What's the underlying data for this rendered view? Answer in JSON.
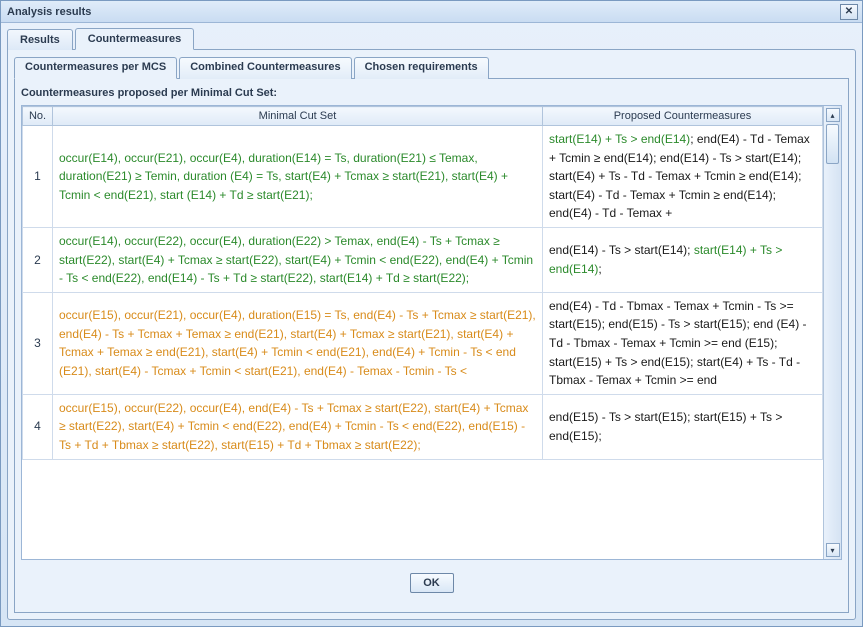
{
  "window": {
    "title": "Analysis results"
  },
  "tabs": {
    "items": [
      {
        "label": "Results",
        "active": false
      },
      {
        "label": "Countermeasures",
        "active": true
      }
    ]
  },
  "subtabs": {
    "items": [
      {
        "label": "Countermeasures per MCS",
        "active": true
      },
      {
        "label": "Combined Countermeasures",
        "active": false
      },
      {
        "label": "Chosen requirements",
        "active": false
      }
    ]
  },
  "caption": "Countermeasures proposed per Minimal Cut Set:",
  "columns": {
    "no": "No.",
    "mcs": "Minimal Cut Set",
    "cm": "Proposed Countermeasures"
  },
  "colors": {
    "green": "#2b8a2b",
    "orange": "#d88b1a",
    "black": "#1a1a1a"
  },
  "rows": [
    {
      "no": "1",
      "mcs_color": "green",
      "mcs": "occur(E14), occur(E21), occur(E4),\nduration(E14) = Ts, duration(E21) ≤ Temax, duration(E21) ≥ Temin, duration (E4) = Ts, start(E4) + Tcmax ≥ start(E21), start(E4) + Tcmin < end(E21), start (E14) + Td ≥ start(E21);",
      "cm_segments": [
        {
          "color": "green",
          "text": "start(E14) + Ts > end(E14)"
        },
        {
          "color": "black",
          "text": "; end(E4) - Td - Temax + Tcmin ≥ end(E14); end(E14) - Ts > start(E14); start(E4) + Ts - Td - Temax + Tcmin ≥ end(E14); start(E4) - Td - Temax + Tcmin ≥ end(E14); end(E4) - Td - Temax +"
        }
      ]
    },
    {
      "no": "2",
      "mcs_color": "green",
      "mcs": "occur(E14), occur(E22), occur(E4),\nduration(E22) > Temax, end(E4) - Ts + Tcmax ≥ start(E22), start(E4) + Tcmax ≥ start(E22), start(E4) + Tcmin < end(E22), end(E4) + Tcmin - Ts < end(E22), end(E14) - Ts + Td ≥ start(E22), start(E14) + Td ≥ start(E22);",
      "cm_segments": [
        {
          "color": "black",
          "text": "end(E14) - Ts > start(E14); "
        },
        {
          "color": "green",
          "text": "start(E14) + Ts > end(E14)"
        },
        {
          "color": "black",
          "text": ";"
        }
      ]
    },
    {
      "no": "3",
      "mcs_color": "orange",
      "mcs": "occur(E15), occur(E21), occur(E4),\nduration(E15) = Ts, end(E4) - Ts + Tcmax ≥ start(E21), end(E4) - Ts + Tcmax + Temax ≥ end(E21), start(E4) + Tcmax ≥ start(E21), start(E4) + Tcmax + Temax ≥ end(E21), start(E4) + Tcmin < end(E21), end(E4) + Tcmin - Ts < end (E21), start(E4) - Tcmax + Tcmin < start(E21), end(E4) - Temax - Tcmin - Ts <",
      "cm_segments": [
        {
          "color": "black",
          "text": "end(E4) - Td - Tbmax - Temax + Tcmin - Ts >= start(E15); end(E15) - Ts > start(E15); end (E4) - Td - Tbmax - Temax + Tcmin >= end (E15); start(E15) + Ts > end(E15); start(E4) + Ts - Td - Tbmax - Temax + Tcmin >= end"
        }
      ]
    },
    {
      "no": "4",
      "mcs_color": "orange",
      "mcs": "occur(E15), occur(E22), occur(E4),\nend(E4) - Ts + Tcmax ≥ start(E22), start(E4) + Tcmax ≥ start(E22), start(E4) + Tcmin < end(E22), end(E4) + Tcmin - Ts < end(E22), end(E15) - Ts + Td + Tbmax ≥ start(E22), start(E15) + Td + Tbmax ≥ start(E22);",
      "cm_segments": [
        {
          "color": "black",
          "text": "end(E15) - Ts > start(E15); start(E15) + Ts > end(E15);"
        }
      ]
    }
  ],
  "buttons": {
    "ok": "OK"
  }
}
